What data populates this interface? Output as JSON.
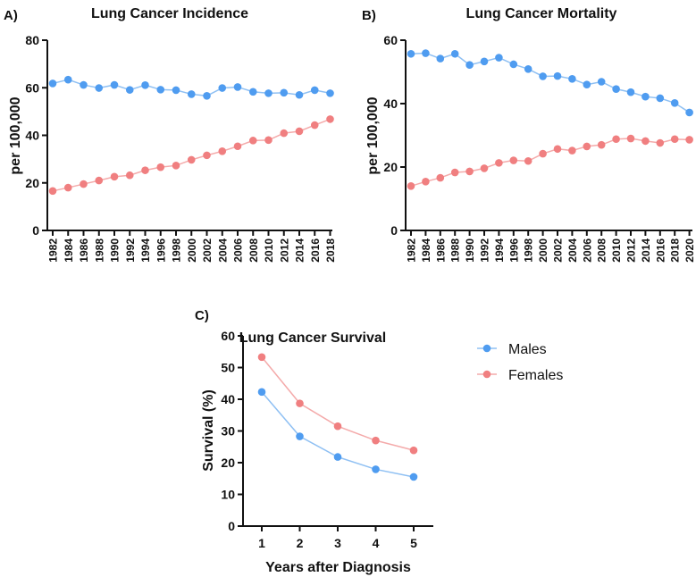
{
  "colors": {
    "males": "#4f9cf0",
    "females": "#f07f80",
    "males_line": "#8fc0f3",
    "females_line": "#f4aaaa",
    "axis": "#111111"
  },
  "chart_data": [
    {
      "panel_label": "A)",
      "type": "line",
      "title": "Lung Cancer Incidence",
      "xlabel": "",
      "ylabel": "per 100,000",
      "ylim": [
        0,
        80
      ],
      "yticks": [
        "0",
        "20",
        "40",
        "60",
        "80"
      ],
      "x": [
        "1982",
        "1984",
        "1986",
        "1988",
        "1990",
        "1992",
        "1994",
        "1996",
        "1998",
        "2000",
        "2002",
        "2004",
        "2006",
        "2008",
        "2010",
        "2012",
        "2014",
        "2016",
        "2018"
      ],
      "series": [
        {
          "name": "Males",
          "values": [
            61.8,
            63.4,
            61.2,
            59.9,
            61.2,
            59.1,
            61.1,
            59.2,
            59.0,
            57.3,
            56.6,
            59.9,
            60.3,
            58.3,
            57.7,
            57.9,
            57.0,
            59.0,
            57.7
          ]
        },
        {
          "name": "Females",
          "values": [
            16.6,
            18.0,
            19.5,
            21.0,
            22.6,
            23.2,
            25.3,
            26.6,
            27.3,
            29.7,
            31.6,
            33.3,
            35.4,
            37.8,
            38.0,
            40.9,
            41.7,
            44.3,
            46.8
          ]
        }
      ]
    },
    {
      "panel_label": "B)",
      "type": "line",
      "title": "Lung Cancer Mortality",
      "xlabel": "",
      "ylabel": "per 100,000",
      "ylim": [
        0,
        60
      ],
      "yticks": [
        "0",
        "20",
        "40",
        "60"
      ],
      "x": [
        "1982",
        "1984",
        "1986",
        "1988",
        "1990",
        "1992",
        "1994",
        "1996",
        "1998",
        "2000",
        "2002",
        "2004",
        "2006",
        "2008",
        "2010",
        "2012",
        "2014",
        "2016",
        "2018",
        "2020"
      ],
      "series": [
        {
          "name": "Males",
          "values": [
            55.7,
            55.9,
            54.2,
            55.7,
            52.2,
            53.3,
            54.5,
            52.4,
            50.9,
            48.6,
            48.7,
            47.8,
            46.0,
            46.9,
            44.6,
            43.6,
            42.2,
            41.7,
            40.2,
            37.2
          ]
        },
        {
          "name": "Females",
          "values": [
            14.0,
            15.4,
            16.6,
            18.3,
            18.6,
            19.6,
            21.3,
            22.1,
            21.9,
            24.2,
            25.7,
            25.2,
            26.5,
            27.0,
            28.8,
            29.0,
            28.2,
            27.6,
            28.8,
            28.6
          ]
        }
      ]
    },
    {
      "panel_label": "C)",
      "type": "line",
      "title": "Lung Cancer Survival",
      "xlabel": "Years after Diagnosis",
      "ylabel": "Survival (%)",
      "ylim": [
        0,
        60
      ],
      "yticks": [
        "0",
        "10",
        "20",
        "30",
        "40",
        "50",
        "60"
      ],
      "x": [
        "1",
        "2",
        "3",
        "4",
        "5"
      ],
      "legend": {
        "placement": "right",
        "entries": [
          "Males",
          "Females"
        ]
      },
      "series": [
        {
          "name": "Males",
          "values": [
            42.3,
            28.3,
            21.8,
            17.9,
            15.5
          ]
        },
        {
          "name": "Females",
          "values": [
            53.3,
            38.7,
            31.5,
            27.0,
            23.9
          ]
        }
      ]
    }
  ]
}
